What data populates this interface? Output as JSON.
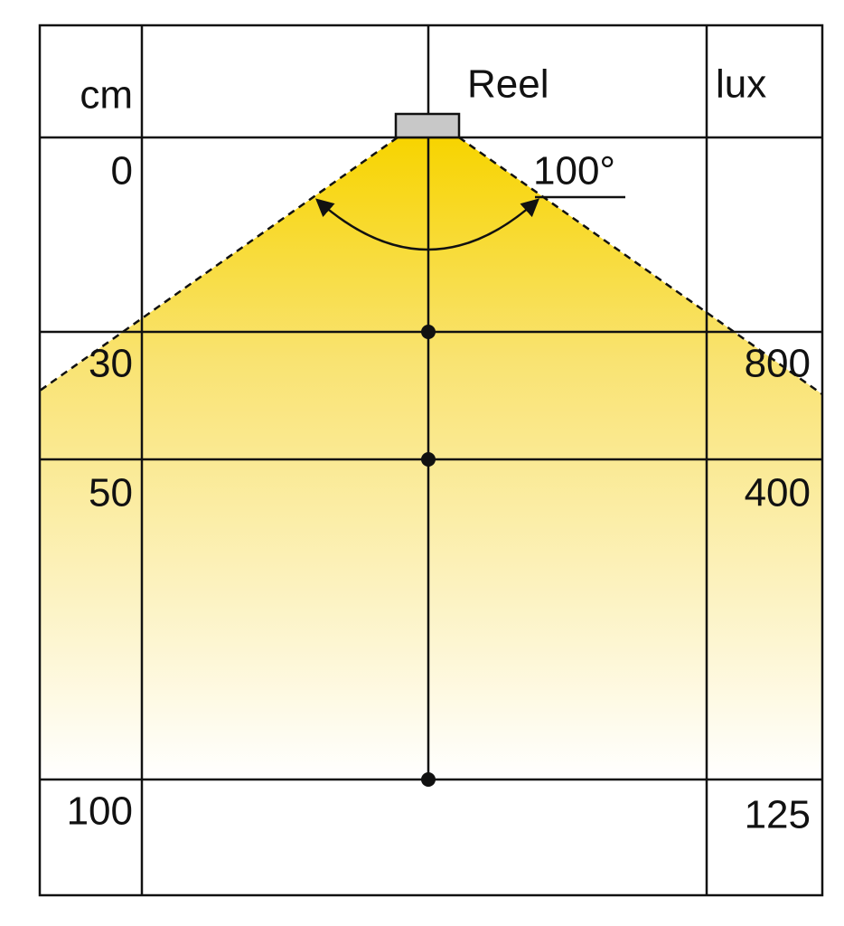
{
  "header": {
    "left": "cm",
    "center": "Reel",
    "right": "lux"
  },
  "beam_angle": "100°",
  "rows": [
    {
      "distance": 0
    },
    {
      "distance": 30,
      "lux": 800
    },
    {
      "distance": 50,
      "lux": 400
    },
    {
      "distance": 100,
      "lux": 125
    }
  ]
}
